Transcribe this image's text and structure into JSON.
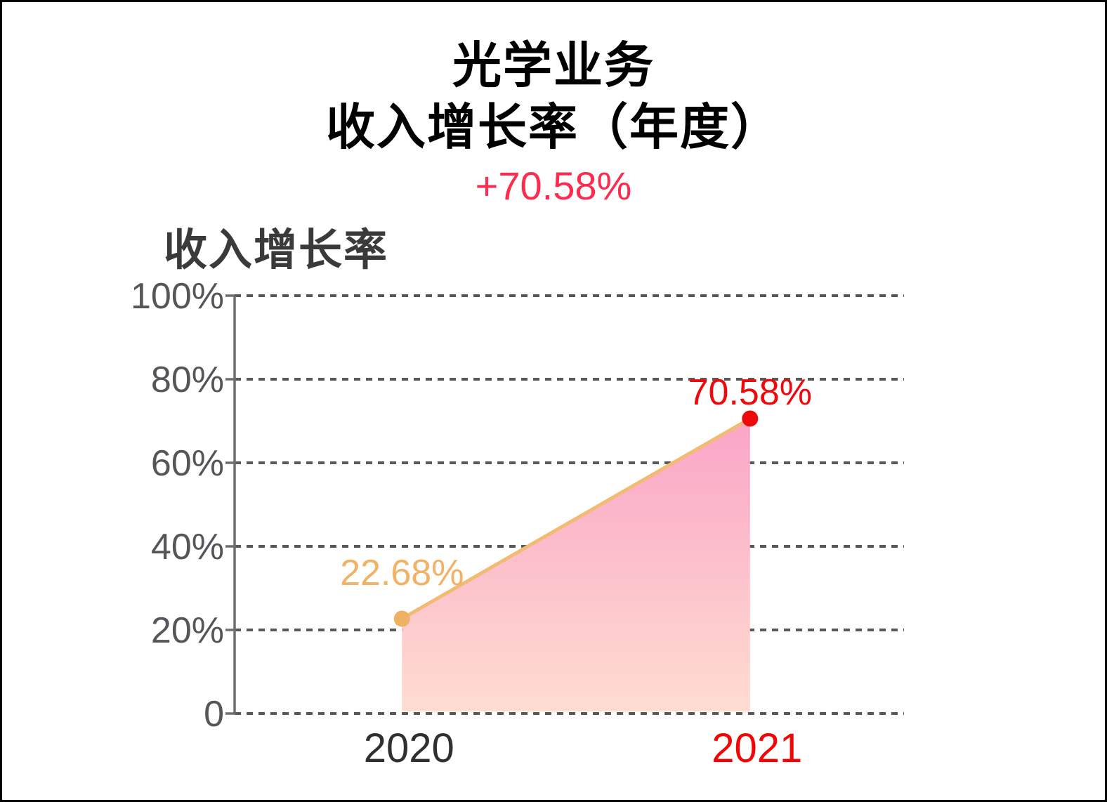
{
  "header": {
    "title_line1": "光学业务",
    "title_line2": "收入增长率（年度）",
    "delta": "+70.58%"
  },
  "colors": {
    "title": "#000000",
    "delta": "#fb2c4d",
    "series_label": "#3a3a3a",
    "axis_text": "#56565a",
    "grid": "#595959",
    "axis_line": "#6e6e6e",
    "line": "#f2bb74",
    "area_top": "#faa5c7",
    "area_bottom": "#fedcd0",
    "points": [
      "#efb164",
      "#ee0a0c"
    ],
    "value_labels": [
      "#f2b266",
      "#ee0a0c"
    ],
    "category_labels": [
      "#303030",
      "#f20506"
    ]
  },
  "chart_data": {
    "type": "area",
    "title": "收入增长率",
    "categories": [
      "2020",
      "2021"
    ],
    "values": [
      22.68,
      70.58
    ],
    "point_labels": [
      "22.68%",
      "70.58%"
    ],
    "yticks": [
      {
        "value": 100,
        "label": "100%"
      },
      {
        "value": 80,
        "label": "80%"
      },
      {
        "value": 60,
        "label": "60%"
      },
      {
        "value": 40,
        "label": "40%"
      },
      {
        "value": 20,
        "label": "20%"
      },
      {
        "value": 0,
        "label": "0"
      }
    ],
    "ylim": [
      0,
      100
    ],
    "xlabel": "",
    "ylabel": "收入增长率",
    "grid": "horizontal-dashed",
    "legend": "none"
  }
}
